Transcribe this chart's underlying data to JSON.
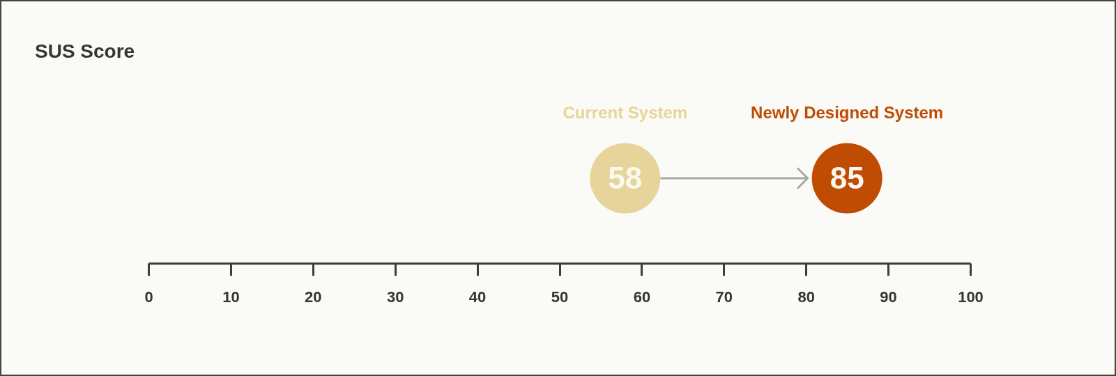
{
  "chart_data": {
    "type": "scatter",
    "title": "SUS Score",
    "orientation": "horizontal",
    "categories": [
      null
    ],
    "series": [
      {
        "name": "Current System",
        "color": "#e7d49a",
        "values": [
          58
        ]
      },
      {
        "name": "Newly Designed System",
        "color": "#c04b02",
        "values": [
          85
        ]
      }
    ],
    "xlim": [
      0,
      100
    ],
    "xticks": [
      0,
      10,
      20,
      30,
      40,
      50,
      60,
      70,
      80,
      90,
      100
    ],
    "marker": "circle",
    "data_labels": true
  }
}
